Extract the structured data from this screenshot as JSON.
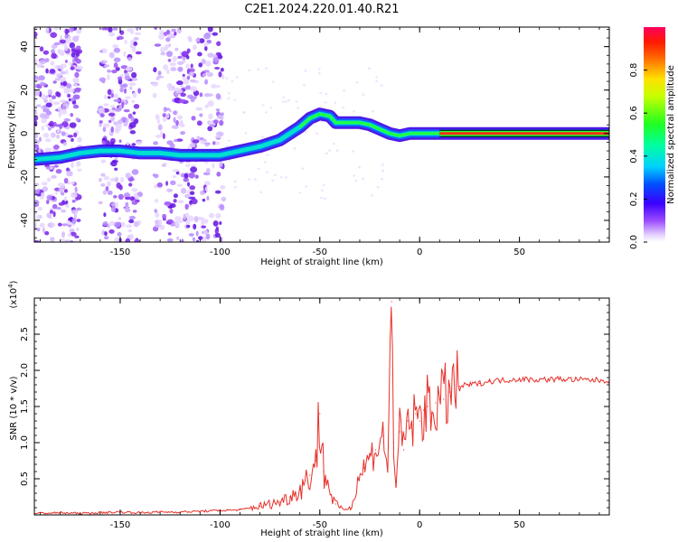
{
  "title": "C2E1.2024.220.01.40.R21",
  "chart_data": [
    {
      "type": "heatmap",
      "name": "spectrogram",
      "xlabel": "Height of straight line (km)",
      "ylabel": "Frequency (Hz)",
      "xlim": [
        -193,
        95
      ],
      "ylim": [
        -50,
        49
      ],
      "xticks": [
        -150,
        -100,
        -50,
        0,
        50
      ],
      "yticks": [
        -40,
        -20,
        0,
        20,
        40
      ],
      "colorbar": {
        "label": "Normalized spectral amplitude",
        "range": [
          0,
          1
        ],
        "ticks": [
          0.0,
          0.2,
          0.4,
          0.6,
          0.8
        ]
      },
      "ridge": {
        "x": [
          -193,
          -180,
          -170,
          -160,
          -150,
          -140,
          -130,
          -120,
          -110,
          -100,
          -90,
          -80,
          -70,
          -60,
          -55,
          -50,
          -45,
          -42,
          -40,
          -35,
          -30,
          -25,
          -20,
          -15,
          -10,
          -5,
          0,
          10,
          20,
          30,
          50,
          70,
          95
        ],
        "y": [
          -12,
          -11,
          -9,
          -8,
          -8,
          -9,
          -9,
          -10,
          -10,
          -10,
          -8,
          -6,
          -3,
          3,
          7,
          9,
          8,
          5,
          5,
          5,
          5,
          4,
          2,
          0,
          -1,
          0,
          0,
          0,
          0,
          0,
          0,
          0,
          0
        ]
      }
    },
    {
      "type": "line",
      "name": "snr",
      "xlabel": "Height of straight line (km)",
      "ylabel": "SNR (10 * v/v)",
      "y_scale_label": "(x10",
      "y_scale_exp": "4",
      "y_scale_close": ")",
      "xlim": [
        -193,
        95
      ],
      "ylim": [
        0,
        3.0
      ],
      "xticks": [
        -150,
        -100,
        -50,
        0,
        50
      ],
      "yticks": [
        0.5,
        1.0,
        1.5,
        2.0,
        2.5
      ],
      "ytick_labels": [
        "0.5",
        "1.0",
        "1.5",
        "2.0",
        "2.5"
      ],
      "color": "#e8302a",
      "series": [
        {
          "name": "SNR",
          "x": [
            -193,
            -180,
            -170,
            -160,
            -150,
            -140,
            -130,
            -120,
            -110,
            -100,
            -90,
            -80,
            -75,
            -70,
            -65,
            -60,
            -55,
            -52,
            -50,
            -48,
            -46,
            -44,
            -42,
            -40,
            -37,
            -34,
            -31,
            -28,
            -25,
            -22,
            -20,
            -18,
            -16,
            -14,
            -13,
            -12,
            -10,
            -8,
            -6,
            -4,
            -2,
            0,
            2,
            4,
            6,
            8,
            10,
            12,
            15,
            20,
            25,
            30,
            35,
            40,
            50,
            60,
            70,
            80,
            95
          ],
          "y": [
            0.02,
            0.03,
            0.02,
            0.03,
            0.04,
            0.03,
            0.04,
            0.04,
            0.05,
            0.06,
            0.07,
            0.12,
            0.15,
            0.18,
            0.25,
            0.35,
            0.55,
            0.75,
            1.4,
            0.6,
            0.45,
            0.25,
            0.15,
            0.1,
            0.08,
            0.1,
            0.5,
            0.65,
            0.8,
            0.9,
            1.0,
            1.1,
            0.6,
            2.95,
            1.0,
            0.4,
            1.15,
            0.9,
            1.3,
            1.2,
            1.4,
            1.3,
            1.45,
            1.5,
            1.4,
            1.55,
            1.6,
            1.6,
            1.7,
            1.78,
            1.8,
            1.82,
            1.85,
            1.86,
            1.88,
            1.87,
            1.88,
            1.87,
            1.86
          ]
        }
      ]
    }
  ]
}
